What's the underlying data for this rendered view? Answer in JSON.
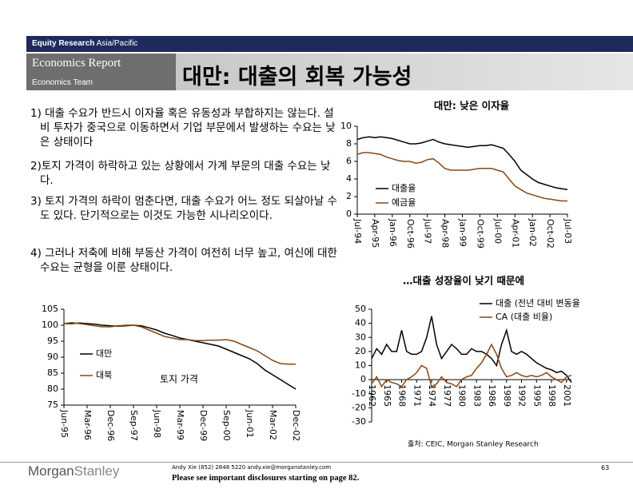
{
  "header": {
    "brand": "Equity Research",
    "region": "Asia/Pacific",
    "report": "Economics Report",
    "team": "Economics Team",
    "title": "대만: 대출의 회복 가능성"
  },
  "bullets": [
    "1) 대출 수요가 반드시 이자율 혹은 유동성과 부합하지는 않는다. 설비 투자가 중국으로 이동하면서 기업 부문에서 발생하는 수요는 낮은 상태이다",
    "2)토지 가격이 하락하고 있는 상황에서 가계 부문의 대출 수요는 낮다.",
    "3) 토지 가격의 하락이 멈춘다면, 대출 수요가 어느 정도 되살아날 수도 있다. 단기적으로는 이것도 가능한 시나리오이다.",
    "4) 그러나 저축에 비해 부동산 가격이 여전히 너무 높고, 여신에 대한 수요는 균형을 이룬 상태이다."
  ],
  "chart_data": [
    {
      "type": "line",
      "title": "대만: 낮은 이자율",
      "categories": [
        "Jul-94",
        null,
        null,
        "Apr-95",
        null,
        null,
        "Jan-96",
        null,
        null,
        "Oct-96",
        null,
        null,
        "Jul-97",
        null,
        null,
        "Apr-98",
        null,
        null,
        "Jan-99",
        null,
        null,
        "Oct-99",
        null,
        null,
        "Jul-00",
        null,
        null,
        "Apr-01",
        null,
        null,
        "Jan-02",
        null,
        null,
        "Oct-02",
        null,
        null,
        "Jul-03"
      ],
      "series": [
        {
          "name": "대출율",
          "color": "#000000",
          "values": [
            8.5,
            8.7,
            8.8,
            8.7,
            8.8,
            8.7,
            8.6,
            8.4,
            8.2,
            8.0,
            8.0,
            8.1,
            8.3,
            8.5,
            8.2,
            8.0,
            7.9,
            7.8,
            7.7,
            7.6,
            7.7,
            7.8,
            7.8,
            7.9,
            7.7,
            7.5,
            6.8,
            6.0,
            5.0,
            4.5,
            4.0,
            3.6,
            3.4,
            3.2,
            3.0,
            2.9,
            2.8
          ]
        },
        {
          "name": "예금율",
          "color": "#8b4513",
          "values": [
            6.8,
            7.0,
            7.0,
            6.9,
            6.8,
            6.5,
            6.3,
            6.1,
            6.0,
            6.0,
            5.8,
            5.9,
            6.2,
            6.3,
            5.8,
            5.2,
            5.0,
            5.0,
            5.0,
            5.0,
            5.1,
            5.2,
            5.2,
            5.2,
            5.0,
            4.8,
            4.0,
            3.2,
            2.8,
            2.4,
            2.2,
            2.0,
            1.8,
            1.7,
            1.6,
            1.5,
            1.5
          ]
        }
      ],
      "ylim": [
        0,
        10
      ],
      "yticks": [
        0,
        2,
        4,
        6,
        8,
        10
      ],
      "legend": "lower right"
    },
    {
      "type": "line",
      "annotation": "토지 가격",
      "categories": [
        "Jun-95",
        null,
        null,
        "Mar-96",
        null,
        null,
        "Dec-96",
        null,
        null,
        "Sep-97",
        null,
        null,
        "Jun-98",
        null,
        null,
        "Mar-99",
        null,
        null,
        "Dec-99",
        null,
        null,
        "Sep-00",
        null,
        null,
        "Jun-01",
        null,
        null,
        "Mar-02",
        null,
        null,
        "Dec-02"
      ],
      "series": [
        {
          "name": "대만",
          "color": "#000000",
          "values": [
            100.5,
            100.5,
            100.7,
            100.5,
            100.3,
            100,
            99.8,
            99.7,
            99.8,
            100,
            99.8,
            99.2,
            98.5,
            97.5,
            96.8,
            96,
            95.5,
            95,
            94.5,
            94,
            93.5,
            92.5,
            91.5,
            90.5,
            89.5,
            88,
            86,
            84.5,
            83,
            81.5,
            80
          ]
        },
        {
          "name": "대북",
          "color": "#8b4513",
          "values": [
            100.5,
            100.8,
            100.5,
            100.2,
            99.8,
            99.5,
            99.5,
            99.8,
            100,
            100,
            99.5,
            98.5,
            97.5,
            96.5,
            96,
            95.5,
            95.5,
            95.2,
            95.2,
            95.3,
            95.3,
            95.5,
            95,
            94,
            93,
            92,
            90.5,
            89,
            88,
            87.8,
            87.8
          ]
        }
      ],
      "ylim": [
        75,
        105
      ],
      "yticks": [
        75,
        80,
        85,
        90,
        95,
        100,
        105
      ],
      "legend": "left"
    },
    {
      "type": "line",
      "title": "…대출 성장율이 낮기 때문에",
      "source": "출처: CEIC, Morgan Stanley Research",
      "categories": [
        "1962",
        null,
        null,
        "1965",
        null,
        null,
        "1968",
        null,
        null,
        "1971",
        null,
        null,
        "1974",
        null,
        null,
        "1977",
        null,
        null,
        "1980",
        null,
        null,
        "1983",
        null,
        null,
        "1986",
        null,
        null,
        "1989",
        null,
        null,
        "1992",
        null,
        null,
        "1995",
        null,
        null,
        "1998",
        null,
        null,
        "2001",
        null
      ],
      "series": [
        {
          "name": "대출 (전년 대비 변동율",
          "color": "#000000",
          "values": [
            15,
            22,
            18,
            25,
            20,
            20,
            35,
            20,
            18,
            18,
            20,
            30,
            45,
            25,
            15,
            20,
            25,
            22,
            18,
            18,
            22,
            20,
            20,
            18,
            15,
            10,
            25,
            35,
            20,
            18,
            20,
            18,
            15,
            12,
            10,
            8,
            7,
            5,
            6,
            3,
            -2
          ]
        },
        {
          "name": "CA (대출 비율)",
          "color": "#8b4513",
          "values": [
            -3,
            2,
            -5,
            0,
            -2,
            -3,
            -5,
            0,
            2,
            5,
            10,
            8,
            -5,
            -3,
            2,
            -2,
            -3,
            -5,
            0,
            2,
            3,
            8,
            12,
            18,
            25,
            18,
            8,
            2,
            3,
            5,
            3,
            2,
            3,
            2,
            3,
            5,
            2,
            0,
            -2,
            2,
            3
          ]
        }
      ],
      "ylim": [
        -30,
        50
      ],
      "yticks": [
        -30,
        -20,
        -10,
        0,
        10,
        20,
        30,
        40,
        50
      ],
      "legend": "upper right"
    }
  ],
  "footer": {
    "contact": "Andy Xie (852) 2848 5220 andy.xie@morganstanley.com",
    "disclosure": "Please see important disclosures starting on page 82.",
    "page": "63",
    "logo_a": "Morgan",
    "logo_b": "Stanley"
  }
}
